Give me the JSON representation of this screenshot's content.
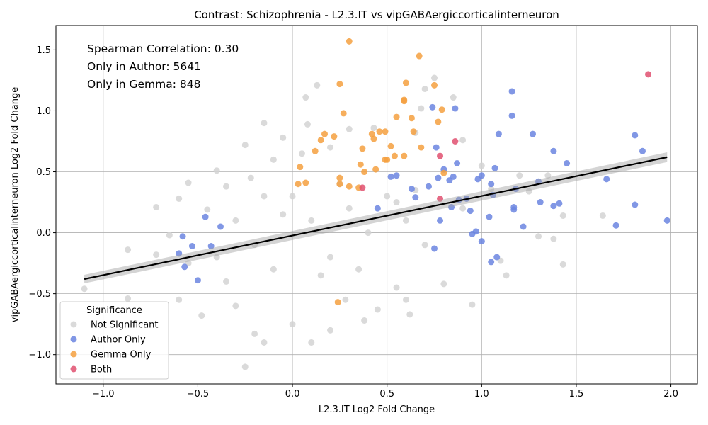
{
  "chart_data": {
    "type": "scatter",
    "title": "Contrast: Schizophrenia - L2.3.IT vs vipGABAergiccorticalinterneuron",
    "xlabel": "L2.3.IT Log2 Fold Change",
    "ylabel": "vipGABAergiccorticalinterneuron Log2 Fold Change",
    "xlim": [
      -1.25,
      2.14
    ],
    "ylim": [
      -1.24,
      1.7
    ],
    "x_ticks": [
      -1.0,
      -0.5,
      0.0,
      0.5,
      1.0,
      1.5,
      2.0
    ],
    "x_tick_labels": [
      "−1.0",
      "−0.5",
      "0.0",
      "0.5",
      "1.0",
      "1.5",
      "2.0"
    ],
    "y_ticks": [
      -1.0,
      -0.5,
      0.0,
      0.5,
      1.0,
      1.5
    ],
    "y_tick_labels": [
      "−1.0",
      "−0.5",
      "0.0",
      "0.5",
      "1.0",
      "1.5"
    ],
    "grid": true,
    "annotations": [
      "Spearman Correlation: 0.30",
      "Only in Author: 5641",
      "Only in Gemma: 848"
    ],
    "legend": {
      "title": "Significance",
      "placement": "lower-left",
      "entries": [
        {
          "label": "Not Significant",
          "color": "#d3d3d3"
        },
        {
          "label": "Author Only",
          "color": "#6b85e0"
        },
        {
          "label": "Gemma Only",
          "color": "#f5a03f"
        },
        {
          "label": "Both",
          "color": "#e05070"
        }
      ]
    },
    "regression_line": {
      "x": [
        -1.1,
        1.98
      ],
      "y": [
        -0.38,
        0.62
      ],
      "color": "#000000"
    },
    "series": [
      {
        "name": "Not Significant",
        "color": "#d3d3d3",
        "points": [
          [
            -1.1,
            -0.46
          ],
          [
            -0.87,
            -0.14
          ],
          [
            -0.87,
            -0.54
          ],
          [
            -0.72,
            0.21
          ],
          [
            -0.72,
            -0.18
          ],
          [
            -0.65,
            -0.02
          ],
          [
            -0.6,
            0.28
          ],
          [
            -0.6,
            -0.55
          ],
          [
            -0.55,
            0.41
          ],
          [
            -0.55,
            -0.25
          ],
          [
            -0.48,
            -0.68
          ],
          [
            -0.45,
            0.19
          ],
          [
            -0.4,
            0.51
          ],
          [
            -0.35,
            0.38
          ],
          [
            -0.3,
            -0.6
          ],
          [
            -0.25,
            0.72
          ],
          [
            -0.25,
            -1.1
          ],
          [
            -0.2,
            -0.83
          ],
          [
            -0.22,
            0.45
          ],
          [
            -0.15,
            0.9
          ],
          [
            -0.15,
            -0.9
          ],
          [
            -0.1,
            0.6
          ],
          [
            -0.05,
            0.78
          ],
          [
            0.05,
            0.65
          ],
          [
            0.08,
            0.89
          ],
          [
            0.07,
            1.11
          ],
          [
            0.13,
            1.21
          ],
          [
            0.0,
            -0.75
          ],
          [
            0.1,
            -0.9
          ],
          [
            0.2,
            -0.8
          ],
          [
            0.28,
            -0.55
          ],
          [
            0.38,
            -0.72
          ],
          [
            0.45,
            -0.63
          ],
          [
            0.55,
            -0.45
          ],
          [
            0.6,
            -0.55
          ],
          [
            0.62,
            -0.67
          ],
          [
            0.65,
            0.82
          ],
          [
            0.68,
            1.02
          ],
          [
            0.7,
            1.18
          ],
          [
            0.75,
            1.27
          ],
          [
            0.8,
            -0.42
          ],
          [
            0.85,
            1.11
          ],
          [
            0.9,
            0.76
          ],
          [
            0.95,
            -0.59
          ],
          [
            1.0,
            0.55
          ],
          [
            1.05,
            0.36
          ],
          [
            1.1,
            -0.23
          ],
          [
            1.13,
            -0.35
          ],
          [
            1.2,
            0.47
          ],
          [
            1.25,
            0.34
          ],
          [
            1.3,
            -0.03
          ],
          [
            1.35,
            0.47
          ],
          [
            1.38,
            -0.05
          ],
          [
            1.43,
            -0.26
          ],
          [
            1.43,
            0.14
          ],
          [
            1.64,
            0.14
          ],
          [
            0.3,
            0.85
          ],
          [
            0.43,
            0.86
          ],
          [
            0.2,
            0.7
          ],
          [
            -0.3,
            0.1
          ],
          [
            -0.1,
            -0.3
          ],
          [
            0.1,
            0.1
          ],
          [
            0.2,
            -0.2
          ],
          [
            0.3,
            0.2
          ],
          [
            -0.2,
            -0.1
          ],
          [
            0.0,
            0.3
          ],
          [
            0.4,
            0.0
          ],
          [
            -0.4,
            -0.2
          ],
          [
            0.15,
            -0.35
          ],
          [
            -0.05,
            0.15
          ],
          [
            0.5,
            0.3
          ],
          [
            0.6,
            0.1
          ],
          [
            0.7,
            -0.1
          ],
          [
            0.55,
            0.25
          ],
          [
            0.25,
            0.4
          ],
          [
            -0.15,
            0.3
          ],
          [
            -0.35,
            -0.4
          ],
          [
            0.35,
            -0.3
          ],
          [
            0.65,
            0.35
          ],
          [
            0.9,
            0.2
          ]
        ]
      },
      {
        "name": "Author Only",
        "color": "#6b85e0",
        "points": [
          [
            -0.6,
            -0.17
          ],
          [
            -0.58,
            -0.03
          ],
          [
            -0.57,
            -0.28
          ],
          [
            -0.53,
            -0.11
          ],
          [
            -0.5,
            -0.39
          ],
          [
            -0.46,
            0.13
          ],
          [
            -0.43,
            -0.11
          ],
          [
            -0.38,
            0.05
          ],
          [
            0.45,
            0.2
          ],
          [
            0.52,
            0.46
          ],
          [
            0.55,
            0.47
          ],
          [
            0.63,
            0.36
          ],
          [
            0.65,
            0.29
          ],
          [
            0.72,
            0.38
          ],
          [
            0.74,
            1.03
          ],
          [
            0.75,
            -0.13
          ],
          [
            0.76,
            0.7
          ],
          [
            0.77,
            0.45
          ],
          [
            0.78,
            0.1
          ],
          [
            0.8,
            0.52
          ],
          [
            0.83,
            0.43
          ],
          [
            0.84,
            0.21
          ],
          [
            0.85,
            0.46
          ],
          [
            0.86,
            1.02
          ],
          [
            0.87,
            0.57
          ],
          [
            0.88,
            0.27
          ],
          [
            0.92,
            0.28
          ],
          [
            0.94,
            0.18
          ],
          [
            0.95,
            -0.01
          ],
          [
            0.97,
            0.01
          ],
          [
            0.98,
            0.44
          ],
          [
            1.0,
            0.47
          ],
          [
            1.0,
            -0.07
          ],
          [
            1.04,
            0.13
          ],
          [
            1.05,
            0.4
          ],
          [
            1.05,
            -0.24
          ],
          [
            1.06,
            0.31
          ],
          [
            1.07,
            0.53
          ],
          [
            1.08,
            -0.2
          ],
          [
            1.09,
            0.81
          ],
          [
            1.16,
            1.16
          ],
          [
            1.16,
            0.96
          ],
          [
            1.17,
            0.21
          ],
          [
            1.17,
            0.19
          ],
          [
            1.18,
            0.36
          ],
          [
            1.22,
            0.05
          ],
          [
            1.27,
            0.81
          ],
          [
            1.3,
            0.42
          ],
          [
            1.31,
            0.25
          ],
          [
            1.38,
            0.67
          ],
          [
            1.38,
            0.22
          ],
          [
            1.41,
            0.24
          ],
          [
            1.45,
            0.57
          ],
          [
            1.66,
            0.44
          ],
          [
            1.71,
            0.06
          ],
          [
            1.81,
            0.8
          ],
          [
            1.81,
            0.23
          ],
          [
            1.85,
            0.67
          ],
          [
            1.98,
            0.1
          ]
        ]
      },
      {
        "name": "Gemma Only",
        "color": "#f5a03f",
        "points": [
          [
            0.3,
            1.57
          ],
          [
            0.67,
            1.45
          ],
          [
            0.25,
            1.22
          ],
          [
            0.6,
            1.23
          ],
          [
            0.75,
            1.21
          ],
          [
            0.59,
            1.09
          ],
          [
            0.59,
            1.08
          ],
          [
            0.79,
            1.01
          ],
          [
            0.27,
            0.98
          ],
          [
            0.55,
            0.95
          ],
          [
            0.63,
            0.94
          ],
          [
            0.77,
            0.91
          ],
          [
            0.64,
            0.83
          ],
          [
            0.46,
            0.83
          ],
          [
            0.49,
            0.83
          ],
          [
            0.17,
            0.81
          ],
          [
            0.42,
            0.81
          ],
          [
            0.22,
            0.79
          ],
          [
            0.43,
            0.77
          ],
          [
            0.15,
            0.76
          ],
          [
            0.52,
            0.71
          ],
          [
            0.68,
            0.7
          ],
          [
            0.37,
            0.69
          ],
          [
            0.12,
            0.67
          ],
          [
            0.54,
            0.63
          ],
          [
            0.59,
            0.63
          ],
          [
            0.49,
            0.6
          ],
          [
            0.5,
            0.6
          ],
          [
            0.36,
            0.56
          ],
          [
            0.04,
            0.54
          ],
          [
            0.44,
            0.52
          ],
          [
            0.8,
            0.49
          ],
          [
            0.38,
            0.5
          ],
          [
            0.25,
            0.45
          ],
          [
            0.07,
            0.41
          ],
          [
            0.03,
            0.4
          ],
          [
            0.3,
            0.38
          ],
          [
            0.35,
            0.37
          ],
          [
            0.25,
            0.4
          ],
          [
            0.24,
            -0.57
          ]
        ]
      },
      {
        "name": "Both",
        "color": "#e05070",
        "points": [
          [
            1.88,
            1.3
          ],
          [
            0.86,
            0.75
          ],
          [
            0.78,
            0.63
          ],
          [
            0.78,
            0.28
          ],
          [
            0.37,
            0.37
          ]
        ]
      }
    ]
  }
}
